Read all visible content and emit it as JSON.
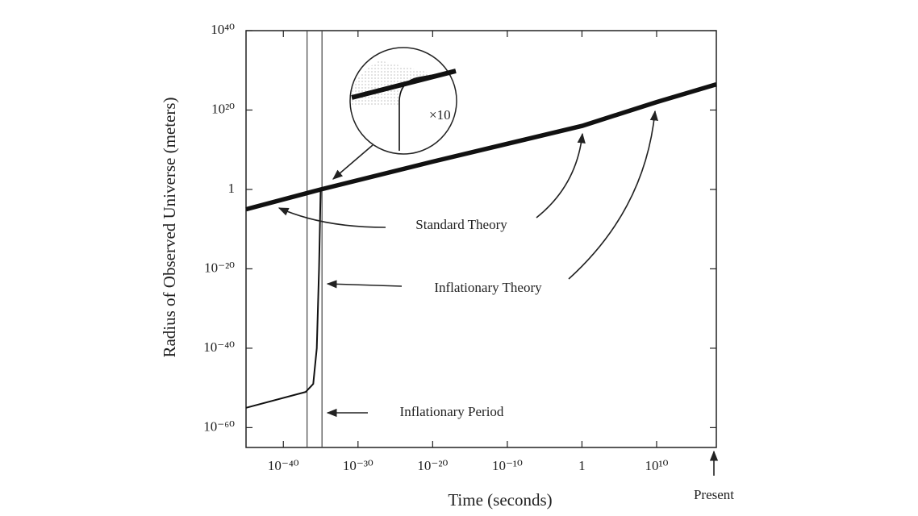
{
  "chart_data": {
    "type": "line",
    "x_label": "Time (seconds)",
    "y_label": "Radius of Observed Universe (meters)",
    "log_x": true,
    "log_y": true,
    "xlim": [
      1e-45,
      1e+18
    ],
    "ylim": [
      1e-65,
      1e+40
    ],
    "xticks": [
      {
        "value": 1e-40,
        "label": "10⁻⁴⁰"
      },
      {
        "value": 1e-30,
        "label": "10⁻³⁰"
      },
      {
        "value": 1e-20,
        "label": "10⁻²⁰"
      },
      {
        "value": 1e-10,
        "label": "10⁻¹⁰"
      },
      1,
      {
        "value": 10000000000.0,
        "label": "10¹⁰"
      }
    ],
    "yticks": [
      {
        "value": 1e-60,
        "label": "10⁻⁶⁰"
      },
      {
        "value": 1e-40,
        "label": "10⁻⁴⁰"
      },
      {
        "value": 1e-20,
        "label": "10⁻²⁰"
      },
      1,
      {
        "value": 1e+20,
        "label": "10²⁰"
      },
      {
        "value": 1e+40,
        "label": "10⁴⁰"
      }
    ],
    "series": [
      {
        "name": "Standard Theory",
        "color": "#111111",
        "x": [
          1e-45,
          1e-35,
          1e-20,
          1,
          10000000000.0,
          1e+18
        ],
        "values": [
          1e-05,
          1,
          10000000.0,
          1e+16,
          1e+22,
          3e+26
        ]
      },
      {
        "name": "Inflationary Theory",
        "color": "#111111",
        "x": [
          1e-45,
          1e-37,
          1e-36,
          3e-36,
          6e-36,
          1e-35
        ],
        "values": [
          1e-55,
          1e-51,
          1e-49,
          1e-40,
          1e-20,
          1
        ]
      }
    ],
    "inflationary_period": [
      1.5e-37,
      1.5e-35
    ],
    "period_label": "Inflationary Period",
    "inset_label": "×10",
    "present_label": "Present"
  }
}
